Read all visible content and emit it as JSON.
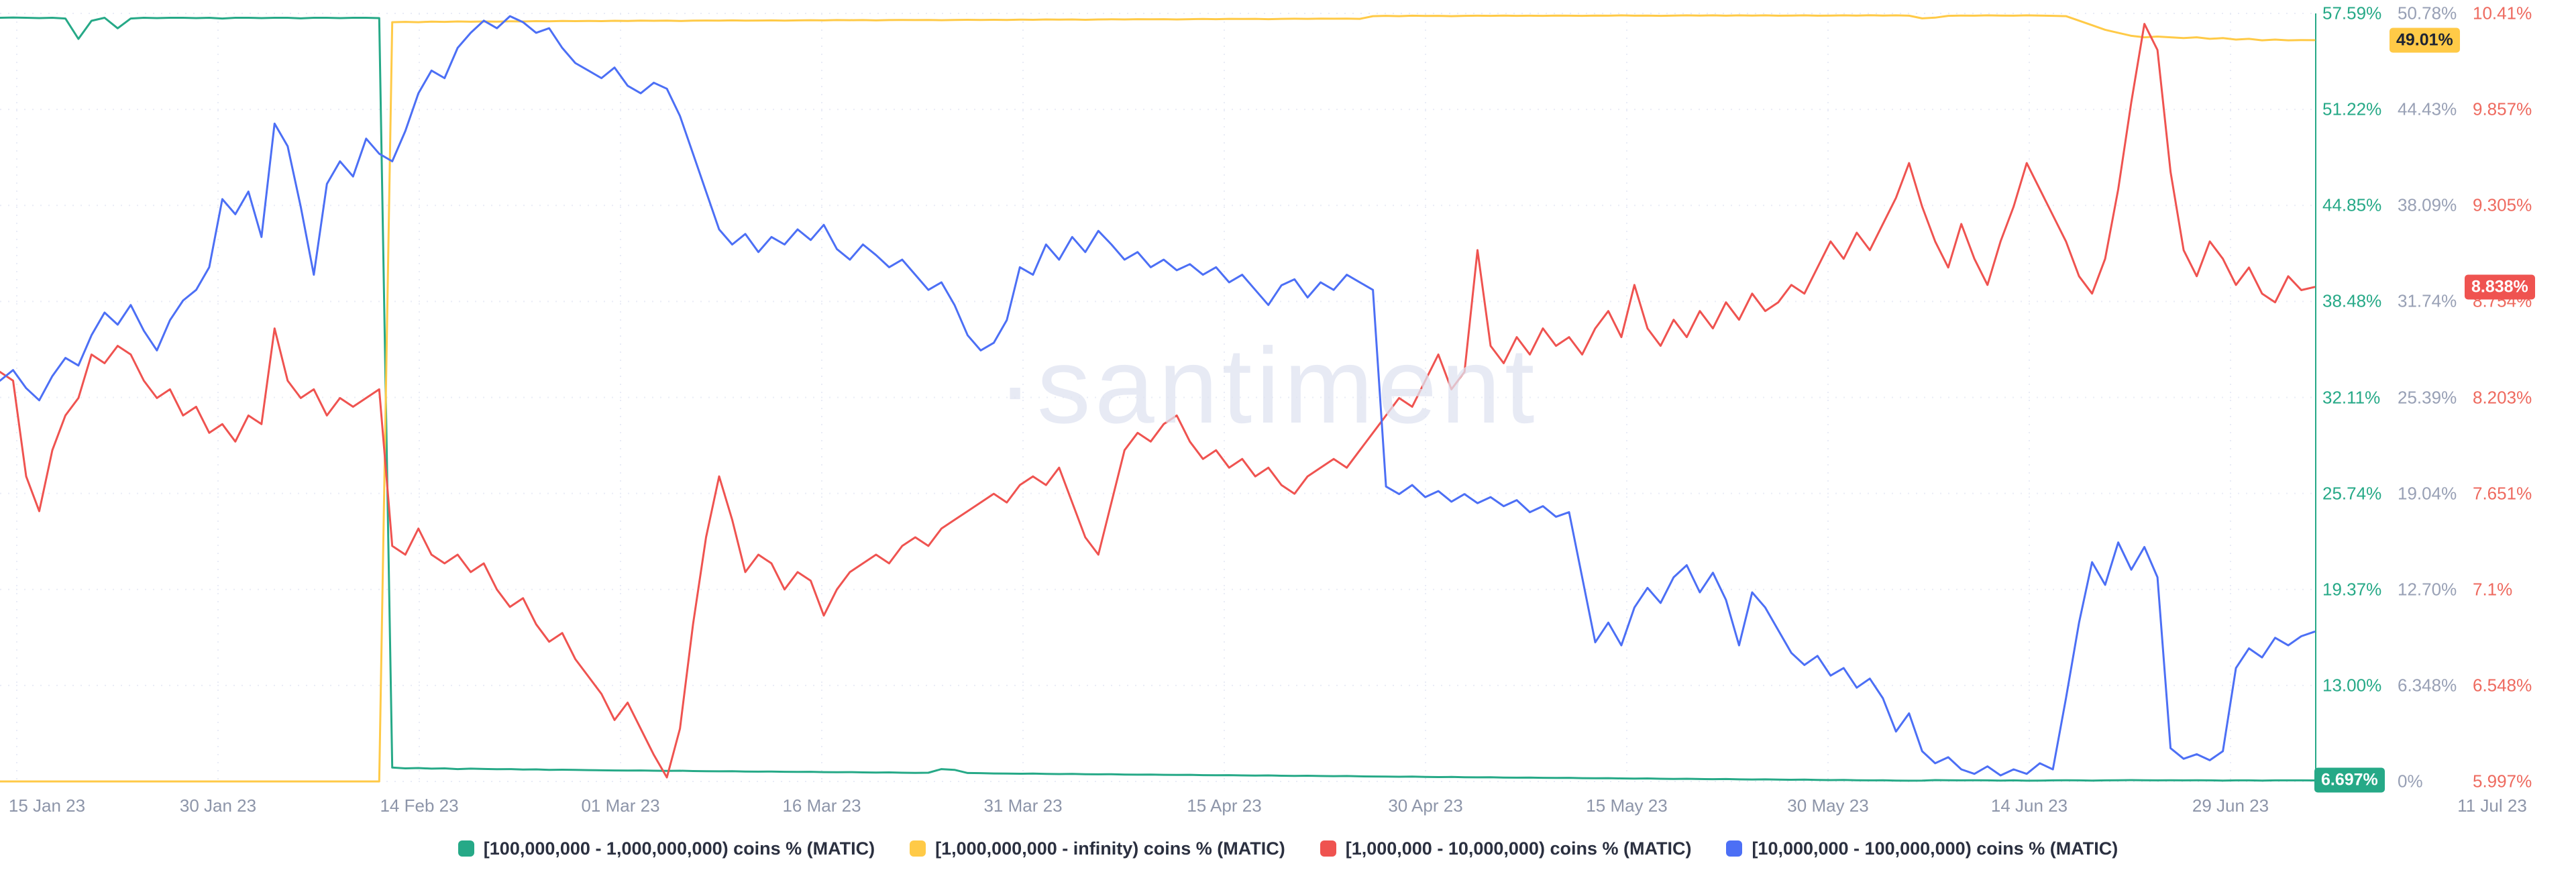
{
  "watermark": "·santiment",
  "x_axis": {
    "labels": [
      "15 Jan 23",
      "30 Jan 23",
      "14 Feb 23",
      "01 Mar 23",
      "16 Mar 23",
      "31 Mar 23",
      "15 Apr 23",
      "30 Apr 23",
      "15 May 23",
      "30 May 23",
      "14 Jun 23",
      "29 Jun 23",
      "11 Jul 23"
    ]
  },
  "y_axes": [
    {
      "id": "supply-100m-1b",
      "tick_color": "#26a987",
      "range": [
        6.63,
        57.59
      ],
      "ticks": [
        "57.59%",
        "51.22%",
        "44.85%",
        "38.48%",
        "32.11%",
        "25.74%",
        "19.37%",
        "13.00%"
      ],
      "badge": {
        "label": "6.697%",
        "value": 6.697,
        "bg": "#26a987",
        "text_color": "#ffffff"
      }
    },
    {
      "id": "supply-1b-infinity",
      "tick_color": "#98a0b5",
      "range": [
        0,
        50.78
      ],
      "ticks": [
        "50.78%",
        "44.43%",
        "38.09%",
        "31.74%",
        "25.39%",
        "19.04%",
        "12.70%",
        "6.348%",
        "0%"
      ],
      "badge": {
        "label": "49.01%",
        "value": 49.01,
        "bg": "#ffca47",
        "text_color": "#1e2433"
      }
    },
    {
      "id": "supply-1m-10m",
      "tick_color": "#ee6a5f",
      "range": [
        5.997,
        10.41
      ],
      "ticks": [
        "10.41%",
        "9.857%",
        "9.305%",
        "8.754%",
        "8.203%",
        "7.651%",
        "7.1%",
        "6.548%",
        "5.997%"
      ],
      "badge": {
        "label": "8.838%",
        "value": 8.838,
        "bg": "#ef5350",
        "text_color": "#ffffff"
      }
    }
  ],
  "chart_data": {
    "type": "line",
    "title": "",
    "x_start": "2023-01-15",
    "x_end": "2023-07-11",
    "interval": "daily",
    "grid": true,
    "legend_position": "bottom",
    "series": [
      {
        "id": "band-100m-1b",
        "name": "[100,000,000 - 1,000,000,000) coins % (MATIC)",
        "color": "#26a987",
        "axis": "supply-100m-1b",
        "scale": [
          6.63,
          57.59
        ],
        "last_value": 6.697,
        "values": [
          57.3,
          57.32,
          57.3,
          57.28,
          57.3,
          57.25,
          55.9,
          57.1,
          57.3,
          56.6,
          57.25,
          57.3,
          57.28,
          57.3,
          57.3,
          57.28,
          57.3,
          57.25,
          57.3,
          57.3,
          57.28,
          57.3,
          57.3,
          57.26,
          57.3,
          57.3,
          57.28,
          57.3,
          57.3,
          57.28,
          7.55,
          7.5,
          7.52,
          7.48,
          7.5,
          7.45,
          7.48,
          7.46,
          7.44,
          7.45,
          7.42,
          7.43,
          7.4,
          7.41,
          7.4,
          7.38,
          7.37,
          7.36,
          7.35,
          7.36,
          7.34,
          7.33,
          7.34,
          7.32,
          7.31,
          7.3,
          7.31,
          7.29,
          7.28,
          7.29,
          7.27,
          7.26,
          7.27,
          7.25,
          7.24,
          7.25,
          7.23,
          7.22,
          7.23,
          7.21,
          7.2,
          7.21,
          7.45,
          7.4,
          7.19,
          7.18,
          7.16,
          7.15,
          7.14,
          7.15,
          7.13,
          7.12,
          7.13,
          7.11,
          7.1,
          7.11,
          7.09,
          7.08,
          7.09,
          7.07,
          7.06,
          7.07,
          7.05,
          7.04,
          7.05,
          7.03,
          7.02,
          7.03,
          7.01,
          7.0,
          7.01,
          6.99,
          6.98,
          6.99,
          6.97,
          6.96,
          6.95,
          6.94,
          6.95,
          6.93,
          6.92,
          6.93,
          6.91,
          6.9,
          6.91,
          6.89,
          6.88,
          6.89,
          6.87,
          6.86,
          6.87,
          6.85,
          6.84,
          6.85,
          6.83,
          6.82,
          6.83,
          6.81,
          6.8,
          6.81,
          6.79,
          6.78,
          6.79,
          6.77,
          6.76,
          6.77,
          6.75,
          6.74,
          6.75,
          6.73,
          6.72,
          6.73,
          6.71,
          6.7,
          6.71,
          6.69,
          6.68,
          6.69,
          6.72,
          6.71,
          6.7,
          6.71,
          6.7,
          6.69,
          6.7,
          6.68,
          6.69,
          6.7,
          6.71,
          6.7,
          6.69,
          6.7,
          6.71,
          6.72,
          6.71,
          6.7,
          6.71,
          6.7,
          6.71,
          6.7,
          6.69,
          6.7,
          6.7,
          6.69,
          6.7,
          6.7,
          6.7,
          6.697
        ]
      },
      {
        "id": "band-1b-infinity",
        "name": "[1,000,000,000 - infinity) coins % (MATIC)",
        "color": "#ffca47",
        "axis": "supply-1b-infinity",
        "scale": [
          0,
          50.78
        ],
        "last_value": 49.01,
        "values": [
          0,
          0,
          0,
          0,
          0,
          0,
          0,
          0,
          0,
          0,
          0,
          0,
          0,
          0,
          0,
          0,
          0,
          0,
          0,
          0,
          0,
          0,
          0,
          0,
          0,
          0,
          0,
          0,
          0,
          0,
          50.2,
          50.22,
          50.2,
          50.24,
          50.22,
          50.25,
          50.23,
          50.25,
          50.24,
          50.26,
          50.25,
          50.27,
          50.26,
          50.28,
          50.27,
          50.28,
          50.27,
          50.29,
          50.28,
          50.3,
          50.29,
          50.3,
          50.28,
          50.3,
          50.31,
          50.3,
          50.32,
          50.3,
          50.31,
          50.32,
          50.3,
          50.32,
          50.33,
          50.32,
          50.34,
          50.33,
          50.34,
          50.32,
          50.34,
          50.35,
          50.34,
          50.35,
          50.33,
          50.35,
          50.36,
          50.35,
          50.36,
          50.35,
          50.37,
          50.36,
          50.38,
          50.37,
          50.38,
          50.36,
          50.38,
          50.39,
          50.38,
          50.4,
          50.39,
          50.4,
          50.38,
          50.4,
          50.41,
          50.4,
          50.42,
          50.41,
          50.42,
          50.4,
          50.42,
          50.43,
          50.42,
          50.44,
          50.43,
          50.44,
          50.42,
          50.6,
          50.62,
          50.6,
          50.63,
          50.61,
          50.62,
          50.6,
          50.62,
          50.63,
          50.62,
          50.64,
          50.62,
          50.63,
          50.62,
          50.64,
          50.63,
          50.62,
          50.64,
          50.63,
          50.65,
          50.63,
          50.64,
          50.62,
          50.64,
          50.65,
          50.64,
          50.65,
          50.63,
          50.65,
          50.64,
          50.65,
          50.63,
          50.64,
          50.65,
          50.63,
          50.64,
          50.65,
          50.64,
          50.66,
          50.64,
          50.65,
          50.63,
          50.45,
          50.5,
          50.62,
          50.64,
          50.63,
          50.65,
          50.64,
          50.63,
          50.65,
          50.64,
          50.62,
          50.6,
          50.3,
          50.0,
          49.7,
          49.5,
          49.3,
          49.2,
          49.25,
          49.2,
          49.15,
          49.2,
          49.1,
          49.15,
          49.05,
          49.1,
          49.0,
          49.05,
          49.0,
          49.02,
          49.01
        ]
      },
      {
        "id": "band-1m-10m",
        "name": "[1,000,000 - 10,000,000) coins % (MATIC)",
        "color": "#ef5350",
        "axis": "supply-1m-10m",
        "scale": [
          5.997,
          10.41
        ],
        "last_value": 8.838,
        "values": [
          8.35,
          8.3,
          7.75,
          7.55,
          7.9,
          8.1,
          8.2,
          8.45,
          8.4,
          8.5,
          8.45,
          8.3,
          8.2,
          8.25,
          8.1,
          8.15,
          8.0,
          8.05,
          7.95,
          8.1,
          8.05,
          8.6,
          8.3,
          8.2,
          8.25,
          8.1,
          8.2,
          8.15,
          8.2,
          8.25,
          7.35,
          7.3,
          7.45,
          7.3,
          7.25,
          7.3,
          7.2,
          7.25,
          7.1,
          7.0,
          7.05,
          6.9,
          6.8,
          6.85,
          6.7,
          6.6,
          6.5,
          6.35,
          6.45,
          6.3,
          6.15,
          6.02,
          6.3,
          6.9,
          7.4,
          7.75,
          7.5,
          7.2,
          7.3,
          7.25,
          7.1,
          7.2,
          7.15,
          6.95,
          7.1,
          7.2,
          7.25,
          7.3,
          7.25,
          7.35,
          7.4,
          7.35,
          7.45,
          7.5,
          7.55,
          7.6,
          7.65,
          7.6,
          7.7,
          7.75,
          7.7,
          7.8,
          7.6,
          7.4,
          7.3,
          7.6,
          7.9,
          8.0,
          7.95,
          8.05,
          8.1,
          7.95,
          7.85,
          7.9,
          7.8,
          7.85,
          7.75,
          7.8,
          7.7,
          7.65,
          7.75,
          7.8,
          7.85,
          7.8,
          7.9,
          8.0,
          8.1,
          8.2,
          8.15,
          8.3,
          8.45,
          8.25,
          8.35,
          9.05,
          8.5,
          8.4,
          8.55,
          8.45,
          8.6,
          8.5,
          8.55,
          8.45,
          8.6,
          8.7,
          8.55,
          8.85,
          8.6,
          8.5,
          8.65,
          8.55,
          8.7,
          8.6,
          8.75,
          8.65,
          8.8,
          8.7,
          8.75,
          8.85,
          8.8,
          8.95,
          9.1,
          9.0,
          9.15,
          9.05,
          9.2,
          9.35,
          9.55,
          9.3,
          9.1,
          8.95,
          9.2,
          9.0,
          8.85,
          9.1,
          9.3,
          9.55,
          9.4,
          9.25,
          9.1,
          8.9,
          8.8,
          9.0,
          9.4,
          9.9,
          10.35,
          10.2,
          9.5,
          9.05,
          8.9,
          9.1,
          9.0,
          8.85,
          8.95,
          8.8,
          8.75,
          8.9,
          8.82,
          8.838
        ]
      },
      {
        "id": "band-10m-100m",
        "name": "[10,000,000 - 100,000,000) coins % (MATIC)",
        "color": "#4c6ff5",
        "axis": "hidden",
        "scale": [
          0,
          50.78
        ],
        "values": [
          26.5,
          27.2,
          26.0,
          25.2,
          26.8,
          28.0,
          27.5,
          29.5,
          31.0,
          30.2,
          31.5,
          29.8,
          28.5,
          30.5,
          31.8,
          32.5,
          34.0,
          38.5,
          37.5,
          39.0,
          36.0,
          43.5,
          42.0,
          38.0,
          33.5,
          39.5,
          41.0,
          40.0,
          42.5,
          41.5,
          41.0,
          43.0,
          45.5,
          47.0,
          46.5,
          48.5,
          49.5,
          50.3,
          49.8,
          50.6,
          50.2,
          49.5,
          49.8,
          48.5,
          47.5,
          47.0,
          46.5,
          47.2,
          46.0,
          45.5,
          46.2,
          45.8,
          44.0,
          41.5,
          39.0,
          36.5,
          35.5,
          36.2,
          35.0,
          36.0,
          35.5,
          36.5,
          35.8,
          36.8,
          35.2,
          34.5,
          35.5,
          34.8,
          34.0,
          34.5,
          33.5,
          32.5,
          33.0,
          31.5,
          29.5,
          28.5,
          29.0,
          30.5,
          34.0,
          33.5,
          35.5,
          34.5,
          36.0,
          35.0,
          36.4,
          35.5,
          34.5,
          35.0,
          34.0,
          34.5,
          33.8,
          34.2,
          33.5,
          34.0,
          33.0,
          33.5,
          32.5,
          31.5,
          32.8,
          33.2,
          32.0,
          33.0,
          32.5,
          33.5,
          33.0,
          32.5,
          19.5,
          19.0,
          19.6,
          18.8,
          19.2,
          18.5,
          19.0,
          18.4,
          18.8,
          18.2,
          18.6,
          17.8,
          18.2,
          17.5,
          17.8,
          13.5,
          9.2,
          10.5,
          9.0,
          11.5,
          12.8,
          11.8,
          13.5,
          14.3,
          12.5,
          13.8,
          12.0,
          9.0,
          12.5,
          11.5,
          10.0,
          8.5,
          7.7,
          8.3,
          7.0,
          7.5,
          6.2,
          6.8,
          5.5,
          3.3,
          4.5,
          2.0,
          1.2,
          1.6,
          0.8,
          0.5,
          1.0,
          0.4,
          0.8,
          0.5,
          1.2,
          0.8,
          5.5,
          10.5,
          14.5,
          13.0,
          15.8,
          14.0,
          15.5,
          13.5,
          2.2,
          1.5,
          1.8,
          1.4,
          2.0,
          7.5,
          8.8,
          8.2,
          9.5,
          9.0,
          9.6,
          9.9
        ]
      }
    ]
  }
}
